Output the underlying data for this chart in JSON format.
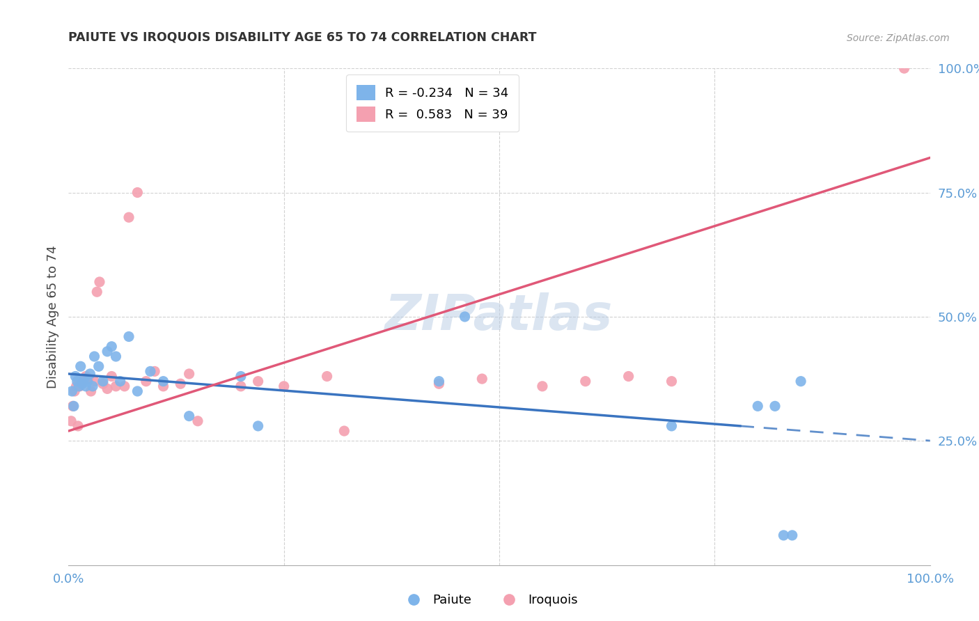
{
  "title": "PAIUTE VS IROQUOIS DISABILITY AGE 65 TO 74 CORRELATION CHART",
  "source": "Source: ZipAtlas.com",
  "ylabel": "Disability Age 65 to 74",
  "legend_blue_r": "R = -0.234",
  "legend_blue_n": "N = 34",
  "legend_pink_r": "R =  0.583",
  "legend_pink_n": "N = 39",
  "legend_label_blue": "Paiute",
  "legend_label_pink": "Iroquois",
  "blue_color": "#7EB4EA",
  "pink_color": "#F4A0B0",
  "blue_line_color": "#3A74C0",
  "pink_line_color": "#E05878",
  "watermark_text": "ZIPatlas",
  "paiute_x": [
    0.4,
    0.6,
    0.8,
    1.0,
    1.2,
    1.4,
    1.6,
    1.8,
    2.0,
    2.2,
    2.5,
    2.8,
    3.0,
    3.5,
    4.0,
    4.5,
    5.0,
    5.5,
    6.0,
    7.0,
    8.0,
    9.5,
    11.0,
    14.0,
    20.0,
    22.0,
    43.0,
    46.0,
    70.0,
    80.0,
    82.0,
    83.0,
    84.0,
    85.0
  ],
  "paiute_y": [
    35.0,
    32.0,
    38.0,
    37.0,
    36.0,
    40.0,
    36.5,
    37.5,
    36.0,
    37.0,
    38.5,
    36.0,
    42.0,
    40.0,
    37.0,
    43.0,
    44.0,
    42.0,
    37.0,
    46.0,
    35.0,
    39.0,
    37.0,
    30.0,
    38.0,
    28.0,
    37.0,
    50.0,
    28.0,
    32.0,
    32.0,
    6.0,
    6.0,
    37.0
  ],
  "iroquois_x": [
    0.3,
    0.5,
    0.7,
    0.9,
    1.1,
    1.3,
    1.5,
    1.7,
    2.0,
    2.3,
    2.6,
    3.0,
    3.3,
    3.6,
    4.0,
    4.5,
    5.0,
    5.5,
    6.5,
    7.0,
    8.0,
    9.0,
    10.0,
    11.0,
    13.0,
    14.0,
    15.0,
    20.0,
    22.0,
    25.0,
    30.0,
    32.0,
    43.0,
    48.0,
    55.0,
    60.0,
    65.0,
    70.0,
    97.0
  ],
  "iroquois_y": [
    29.0,
    32.0,
    35.0,
    36.0,
    28.0,
    36.0,
    36.5,
    37.0,
    38.0,
    37.5,
    35.0,
    37.0,
    55.0,
    57.0,
    36.5,
    35.5,
    38.0,
    36.0,
    36.0,
    70.0,
    75.0,
    37.0,
    39.0,
    36.0,
    36.5,
    38.5,
    29.0,
    36.0,
    37.0,
    36.0,
    38.0,
    27.0,
    36.5,
    37.5,
    36.0,
    37.0,
    38.0,
    37.0,
    100.0
  ],
  "xlim": [
    0.0,
    100.0
  ],
  "ylim": [
    0.0,
    100.0
  ],
  "yticks": [
    25.0,
    50.0,
    75.0,
    100.0
  ],
  "xticks": [
    0.0,
    100.0
  ],
  "xtick_labels_positions": [
    0.0,
    100.0
  ],
  "xtick_labels": [
    "0.0%",
    "100.0%"
  ],
  "ytick_labels": [
    "25.0%",
    "50.0%",
    "75.0%",
    "100.0%"
  ],
  "blue_trend_solid_end": 78.0,
  "blue_trend_start_y": 38.5,
  "blue_trend_end_y": 28.0,
  "pink_trend_start_y": 27.0,
  "pink_trend_end_y": 82.0,
  "background_color": "#FFFFFF",
  "grid_color": "#CCCCCC",
  "axis_color": "#AAAAAA",
  "tick_color": "#5B9BD5",
  "title_color": "#333333",
  "label_color": "#444444"
}
